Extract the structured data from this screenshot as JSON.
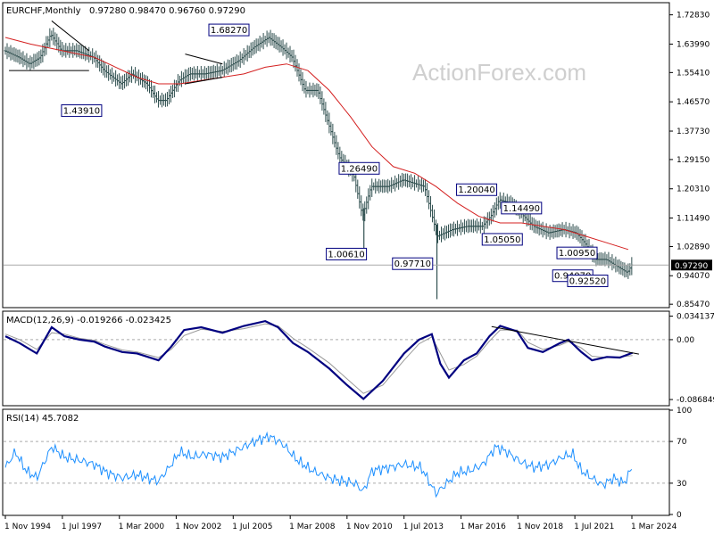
{
  "chart_data": [
    {
      "type": "bar",
      "title": "EURCHF,Monthly",
      "ohlc_text": "0.97280 0.98470 0.96760 0.97290",
      "watermark": "ActionForex.com",
      "ylim": [
        0.8471,
        1.7623
      ],
      "y_ticks": [
        "1.72830",
        "1.63990",
        "1.55410",
        "1.46570",
        "1.37730",
        "1.29150",
        "1.20310",
        "1.11490",
        "1.02890",
        "0.94070",
        "0.85470"
      ],
      "last_price": 0.9729,
      "last_price_label": "0.97290",
      "colors": {
        "bars": "#2f4f4f",
        "ma": "#d42020",
        "trend": "#000000",
        "label_border": "#00007f"
      },
      "price_path": [
        [
          1994.83,
          1.62
        ],
        [
          1995.5,
          1.6
        ],
        [
          1996.0,
          1.58
        ],
        [
          1996.5,
          1.6
        ],
        [
          1997.0,
          1.67
        ],
        [
          1997.5,
          1.62
        ],
        [
          1998.2,
          1.62
        ],
        [
          1999.0,
          1.6
        ],
        [
          1999.5,
          1.56
        ],
        [
          2000.3,
          1.52
        ],
        [
          2000.8,
          1.55
        ],
        [
          2001.5,
          1.52
        ],
        [
          2002.0,
          1.47
        ],
        [
          2002.4,
          1.47
        ],
        [
          2003.0,
          1.53
        ],
        [
          2003.5,
          1.55
        ],
        [
          2004.2,
          1.55
        ],
        [
          2005.0,
          1.56
        ],
        [
          2005.8,
          1.59
        ],
        [
          2006.5,
          1.63
        ],
        [
          2007.2,
          1.66
        ],
        [
          2007.8,
          1.63
        ],
        [
          2008.3,
          1.6
        ],
        [
          2008.9,
          1.5
        ],
        [
          2009.5,
          1.5
        ],
        [
          2010.0,
          1.4
        ],
        [
          2010.5,
          1.3
        ],
        [
          2011.2,
          1.24
        ],
        [
          2011.6,
          1.12
        ],
        [
          2012.0,
          1.21
        ],
        [
          2012.8,
          1.21
        ],
        [
          2013.5,
          1.23
        ],
        [
          2014.5,
          1.21
        ],
        [
          2015.1,
          1.06
        ],
        [
          2015.8,
          1.08
        ],
        [
          2016.5,
          1.09
        ],
        [
          2017.2,
          1.09
        ],
        [
          2017.6,
          1.12
        ],
        [
          2018.0,
          1.17
        ],
        [
          2018.5,
          1.16
        ],
        [
          2019.0,
          1.13
        ],
        [
          2019.6,
          1.09
        ],
        [
          2020.3,
          1.07
        ],
        [
          2021.0,
          1.08
        ],
        [
          2021.6,
          1.07
        ],
        [
          2022.0,
          1.04
        ],
        [
          2022.5,
          0.99
        ],
        [
          2023.0,
          0.99
        ],
        [
          2023.5,
          0.97
        ],
        [
          2024.0,
          0.95
        ],
        [
          2024.2,
          0.973
        ]
      ],
      "spikes": [
        [
          2011.62,
          1.0061
        ],
        [
          2015.04,
          0.87
        ]
      ],
      "ma_path": [
        [
          1994.83,
          1.66
        ],
        [
          1996.0,
          1.64
        ],
        [
          1997.5,
          1.62
        ],
        [
          1999.0,
          1.6
        ],
        [
          2000.0,
          1.57
        ],
        [
          2001.0,
          1.54
        ],
        [
          2002.0,
          1.52
        ],
        [
          2003.0,
          1.52
        ],
        [
          2004.0,
          1.53
        ],
        [
          2005.0,
          1.54
        ],
        [
          2006.0,
          1.55
        ],
        [
          2007.0,
          1.57
        ],
        [
          2008.0,
          1.58
        ],
        [
          2009.0,
          1.56
        ],
        [
          2010.0,
          1.5
        ],
        [
          2011.0,
          1.42
        ],
        [
          2012.0,
          1.33
        ],
        [
          2013.0,
          1.27
        ],
        [
          2014.0,
          1.25
        ],
        [
          2015.0,
          1.21
        ],
        [
          2016.0,
          1.16
        ],
        [
          2017.0,
          1.12
        ],
        [
          2018.0,
          1.1
        ],
        [
          2019.0,
          1.1
        ],
        [
          2020.0,
          1.09
        ],
        [
          2021.0,
          1.08
        ],
        [
          2022.0,
          1.06
        ],
        [
          2023.0,
          1.04
        ],
        [
          2024.0,
          1.02
        ]
      ],
      "trendlines": [
        {
          "x1": 1997.0,
          "y1": 1.71,
          "x2": 1998.75,
          "y2": 1.62
        },
        {
          "x1": 1995.0,
          "y1": 1.56,
          "x2": 1998.75,
          "y2": 1.56
        },
        {
          "x1": 2003.25,
          "y1": 1.61,
          "x2": 2005.0,
          "y2": 1.58
        },
        {
          "x1": 2003.25,
          "y1": 1.52,
          "x2": 2005.0,
          "y2": 1.54
        }
      ],
      "annotations": [
        {
          "text": "1.68270",
          "x": 2005.3,
          "y": 1.6827
        },
        {
          "text": "1.43910",
          "x": 1998.4,
          "y": 1.4391
        },
        {
          "text": "1.26490",
          "x": 2011.4,
          "y": 1.2649
        },
        {
          "text": "1.00610",
          "x": 2010.8,
          "y": 1.0061
        },
        {
          "text": "0.97710",
          "x": 2013.9,
          "y": 0.9771
        },
        {
          "text": "1.20040",
          "x": 2016.9,
          "y": 1.2004
        },
        {
          "text": "1.14490",
          "x": 2019.0,
          "y": 1.1449
        },
        {
          "text": "1.05050",
          "x": 2018.1,
          "y": 1.0505
        },
        {
          "text": "1.00950",
          "x": 2021.6,
          "y": 1.0095
        },
        {
          "text": "0.94070",
          "x": 2021.4,
          "y": 0.9407
        },
        {
          "text": "0.92520",
          "x": 2022.1,
          "y": 0.9252
        }
      ]
    },
    {
      "type": "line",
      "title": "MACD(12,26,9) -0.019266 -0.023425",
      "ylim": [
        -0.0945,
        0.04
      ],
      "y_ticks": [
        "0.034137",
        "0.00",
        "-0.086849"
      ],
      "zero_line": 0,
      "colors": {
        "macd": "#000080",
        "signal": "#999999",
        "trend": "#000000",
        "zero": "#aaaaaa"
      },
      "macd_path": [
        [
          1994.83,
          0.005
        ],
        [
          1995.5,
          -0.005
        ],
        [
          1996.3,
          -0.02
        ],
        [
          1997.0,
          0.018
        ],
        [
          1997.6,
          0.005
        ],
        [
          1998.3,
          0.0
        ],
        [
          1999.0,
          -0.003
        ],
        [
          1999.5,
          -0.01
        ],
        [
          2000.3,
          -0.018
        ],
        [
          2001.0,
          -0.02
        ],
        [
          2002.0,
          -0.03
        ],
        [
          2002.6,
          -0.01
        ],
        [
          2003.2,
          0.014
        ],
        [
          2004.0,
          0.018
        ],
        [
          2005.0,
          0.01
        ],
        [
          2006.0,
          0.02
        ],
        [
          2007.0,
          0.027
        ],
        [
          2007.6,
          0.018
        ],
        [
          2008.3,
          -0.005
        ],
        [
          2009.0,
          -0.018
        ],
        [
          2010.0,
          -0.042
        ],
        [
          2010.8,
          -0.065
        ],
        [
          2011.6,
          -0.086
        ],
        [
          2012.5,
          -0.06
        ],
        [
          2013.5,
          -0.02
        ],
        [
          2014.2,
          0.0
        ],
        [
          2014.8,
          0.008
        ],
        [
          2015.2,
          -0.035
        ],
        [
          2015.6,
          -0.055
        ],
        [
          2016.3,
          -0.03
        ],
        [
          2016.9,
          -0.02
        ],
        [
          2017.5,
          0.005
        ],
        [
          2018.0,
          0.02
        ],
        [
          2018.8,
          0.012
        ],
        [
          2019.3,
          -0.012
        ],
        [
          2020.0,
          -0.018
        ],
        [
          2020.8,
          -0.005
        ],
        [
          2021.2,
          0.0
        ],
        [
          2021.8,
          -0.018
        ],
        [
          2022.3,
          -0.03
        ],
        [
          2023.0,
          -0.025
        ],
        [
          2023.6,
          -0.026
        ],
        [
          2024.2,
          -0.019
        ]
      ],
      "signal_path": [
        [
          1994.83,
          0.008
        ],
        [
          1995.5,
          0.0
        ],
        [
          1996.3,
          -0.014
        ],
        [
          1997.0,
          0.01
        ],
        [
          1997.6,
          0.008
        ],
        [
          1998.3,
          0.002
        ],
        [
          1999.0,
          -0.001
        ],
        [
          1999.5,
          -0.007
        ],
        [
          2000.3,
          -0.015
        ],
        [
          2001.0,
          -0.018
        ],
        [
          2002.0,
          -0.026
        ],
        [
          2002.6,
          -0.014
        ],
        [
          2003.2,
          0.006
        ],
        [
          2004.0,
          0.015
        ],
        [
          2005.0,
          0.012
        ],
        [
          2006.0,
          0.016
        ],
        [
          2007.0,
          0.023
        ],
        [
          2007.6,
          0.02
        ],
        [
          2008.3,
          0.002
        ],
        [
          2009.0,
          -0.012
        ],
        [
          2010.0,
          -0.034
        ],
        [
          2010.8,
          -0.056
        ],
        [
          2011.6,
          -0.078
        ],
        [
          2012.5,
          -0.066
        ],
        [
          2013.5,
          -0.03
        ],
        [
          2014.2,
          -0.006
        ],
        [
          2014.8,
          0.004
        ],
        [
          2015.2,
          -0.02
        ],
        [
          2015.6,
          -0.044
        ],
        [
          2016.3,
          -0.036
        ],
        [
          2016.9,
          -0.024
        ],
        [
          2017.5,
          -0.002
        ],
        [
          2018.0,
          0.014
        ],
        [
          2018.8,
          0.014
        ],
        [
          2019.3,
          -0.004
        ],
        [
          2020.0,
          -0.014
        ],
        [
          2020.8,
          -0.008
        ],
        [
          2021.2,
          -0.003
        ],
        [
          2021.8,
          -0.012
        ],
        [
          2022.3,
          -0.024
        ],
        [
          2023.0,
          -0.026
        ],
        [
          2023.6,
          -0.025
        ],
        [
          2024.2,
          -0.023
        ]
      ],
      "trendlines": [
        {
          "x1": 2017.6,
          "y1": 0.019,
          "x2": 2024.5,
          "y2": -0.021
        }
      ]
    },
    {
      "type": "line",
      "title": "RSI(14) 45.7082",
      "ylim": [
        0,
        100
      ],
      "y_ticks": [
        "100",
        "70",
        "30",
        "0"
      ],
      "levels": [
        70,
        30
      ],
      "colors": {
        "rsi": "#1e90ff",
        "level": "#aaaaaa"
      },
      "rsi_path": [
        [
          1994.83,
          45
        ],
        [
          1995.3,
          60
        ],
        [
          1995.8,
          42
        ],
        [
          1996.3,
          35
        ],
        [
          1997.0,
          65
        ],
        [
          1997.6,
          55
        ],
        [
          1998.3,
          52
        ],
        [
          1999.0,
          48
        ],
        [
          1999.6,
          40
        ],
        [
          2000.3,
          35
        ],
        [
          2001.0,
          38
        ],
        [
          2002.0,
          32
        ],
        [
          2002.5,
          45
        ],
        [
          2003.0,
          60
        ],
        [
          2003.6,
          55
        ],
        [
          2004.2,
          58
        ],
        [
          2005.0,
          55
        ],
        [
          2005.7,
          62
        ],
        [
          2006.5,
          70
        ],
        [
          2007.2,
          75
        ],
        [
          2007.8,
          68
        ],
        [
          2008.5,
          52
        ],
        [
          2009.2,
          42
        ],
        [
          2010.0,
          35
        ],
        [
          2010.6,
          32
        ],
        [
          2011.2,
          30
        ],
        [
          2011.6,
          22
        ],
        [
          2012.0,
          42
        ],
        [
          2012.8,
          45
        ],
        [
          2013.5,
          48
        ],
        [
          2014.3,
          45
        ],
        [
          2015.0,
          20
        ],
        [
          2015.4,
          28
        ],
        [
          2016.0,
          40
        ],
        [
          2016.6,
          42
        ],
        [
          2017.2,
          48
        ],
        [
          2017.8,
          65
        ],
        [
          2018.3,
          60
        ],
        [
          2019.0,
          50
        ],
        [
          2019.6,
          45
        ],
        [
          2020.3,
          48
        ],
        [
          2020.9,
          55
        ],
        [
          2021.4,
          58
        ],
        [
          2021.8,
          42
        ],
        [
          2022.3,
          35
        ],
        [
          2022.8,
          28
        ],
        [
          2023.3,
          35
        ],
        [
          2023.8,
          30
        ],
        [
          2024.2,
          45.7
        ]
      ]
    }
  ],
  "x_axis": {
    "start": 1994.83,
    "end": 2024.17,
    "ticks": [
      {
        "label": "1 Nov 1994",
        "value": 1994.83
      },
      {
        "label": "1 Jul 1997",
        "value": 1997.5
      },
      {
        "label": "1 Mar 2000",
        "value": 2000.17
      },
      {
        "label": "1 Nov 2002",
        "value": 2002.83
      },
      {
        "label": "1 Jul 2005",
        "value": 2005.5
      },
      {
        "label": "1 Mar 2008",
        "value": 2008.17
      },
      {
        "label": "1 Nov 2010",
        "value": 2010.83
      },
      {
        "label": "1 Jul 2013",
        "value": 2013.5
      },
      {
        "label": "1 Mar 2016",
        "value": 2016.17
      },
      {
        "label": "1 Nov 2018",
        "value": 2018.83
      },
      {
        "label": "1 Jul 2021",
        "value": 2021.5
      },
      {
        "label": "1 Mar 2024",
        "value": 2024.17
      }
    ]
  }
}
